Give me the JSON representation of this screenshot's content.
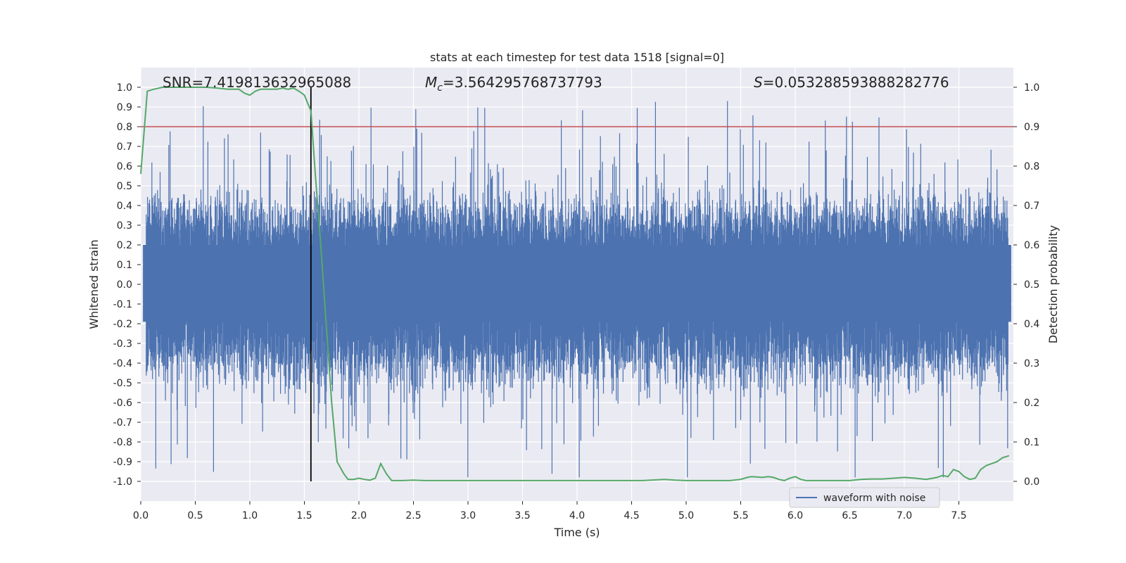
{
  "chart_data": {
    "type": "line",
    "title": "stats at each timestep for test data 1518 [signal=0]",
    "xlabel": "Time (s)",
    "ylabel": "Whitened strain",
    "y2label": "Detection probability",
    "xlim": [
      0.0,
      8.0
    ],
    "ylim": [
      -1.1,
      1.1
    ],
    "y2lim": [
      -0.05,
      1.05
    ],
    "xticks": [
      "0.0",
      "0.5",
      "1.0",
      "1.5",
      "2.0",
      "2.5",
      "3.0",
      "3.5",
      "4.0",
      "4.5",
      "5.0",
      "5.5",
      "6.0",
      "6.5",
      "7.0",
      "7.5"
    ],
    "yticks": [
      "1.0",
      "0.9",
      "0.8",
      "0.7",
      "0.6",
      "0.5",
      "0.4",
      "0.3",
      "0.2",
      "0.1",
      "0.0",
      "-0.1",
      "-0.2",
      "-0.3",
      "-0.4",
      "-0.5",
      "-0.6",
      "-0.7",
      "-0.8",
      "-0.9",
      "-1.0"
    ],
    "y2ticks": [
      "1.0",
      "0.9",
      "0.8",
      "0.7",
      "0.6",
      "0.5",
      "0.4",
      "0.3",
      "0.2",
      "0.1",
      "0.0"
    ],
    "stats": {
      "snr": "SNR=7.419813632965088",
      "mc_symbol": "M",
      "mc_sub": "c",
      "mc_value": "=3.564295768737793",
      "s_symbol": "S",
      "s_value": "=0.053288593888282776"
    },
    "threshold_y": 0.8,
    "vertical_line_x": 1.56,
    "legend": {
      "label": "waveform with noise",
      "position": "lower-right"
    },
    "colors": {
      "waveform": "#4c72b0",
      "probability": "#55a868",
      "threshold": "#c44e52",
      "marker": "#000000",
      "background": "#eaeaf2",
      "grid": "#ffffff"
    },
    "series": [
      {
        "name": "Detection probability",
        "axis": "right",
        "x": [
          0.0,
          0.06,
          0.12,
          0.2,
          0.3,
          0.4,
          0.5,
          0.6,
          0.7,
          0.8,
          0.9,
          0.95,
          1.0,
          1.05,
          1.1,
          1.15,
          1.2,
          1.25,
          1.3,
          1.35,
          1.4,
          1.45,
          1.5,
          1.56,
          1.6,
          1.65,
          1.7,
          1.75,
          1.8,
          1.86,
          1.9,
          1.95,
          2.0,
          2.05,
          2.1,
          2.15,
          2.2,
          2.25,
          2.3,
          2.4,
          2.5,
          2.6,
          2.7,
          2.8,
          2.9,
          3.0,
          3.2,
          3.4,
          3.6,
          3.8,
          4.0,
          4.2,
          4.4,
          4.6,
          4.8,
          4.9,
          5.0,
          5.2,
          5.4,
          5.5,
          5.56,
          5.6,
          5.7,
          5.75,
          5.8,
          5.85,
          5.9,
          5.95,
          6.0,
          6.05,
          6.1,
          6.2,
          6.3,
          6.4,
          6.5,
          6.6,
          6.7,
          6.8,
          6.9,
          7.0,
          7.1,
          7.2,
          7.3,
          7.35,
          7.4,
          7.45,
          7.5,
          7.55,
          7.6,
          7.65,
          7.7,
          7.75,
          7.8,
          7.85,
          7.9,
          7.96
        ],
        "values": [
          0.78,
          0.99,
          0.995,
          1.0,
          1.0,
          1.0,
          1.0,
          1.0,
          0.998,
          0.995,
          0.995,
          0.985,
          0.98,
          0.99,
          0.995,
          0.995,
          0.995,
          0.995,
          0.998,
          0.995,
          0.998,
          0.99,
          0.98,
          0.94,
          0.78,
          0.6,
          0.4,
          0.2,
          0.05,
          0.02,
          0.005,
          0.005,
          0.008,
          0.005,
          0.003,
          0.008,
          0.045,
          0.02,
          0.002,
          0.002,
          0.003,
          0.002,
          0.002,
          0.002,
          0.002,
          0.002,
          0.002,
          0.002,
          0.002,
          0.002,
          0.002,
          0.002,
          0.002,
          0.002,
          0.005,
          0.003,
          0.002,
          0.002,
          0.002,
          0.005,
          0.01,
          0.012,
          0.01,
          0.012,
          0.01,
          0.005,
          0.002,
          0.008,
          0.012,
          0.005,
          0.002,
          0.002,
          0.002,
          0.002,
          0.002,
          0.005,
          0.006,
          0.006,
          0.008,
          0.01,
          0.008,
          0.005,
          0.01,
          0.015,
          0.012,
          0.03,
          0.025,
          0.012,
          0.005,
          0.008,
          0.03,
          0.04,
          0.045,
          0.05,
          0.06,
          0.065
        ]
      }
    ]
  }
}
